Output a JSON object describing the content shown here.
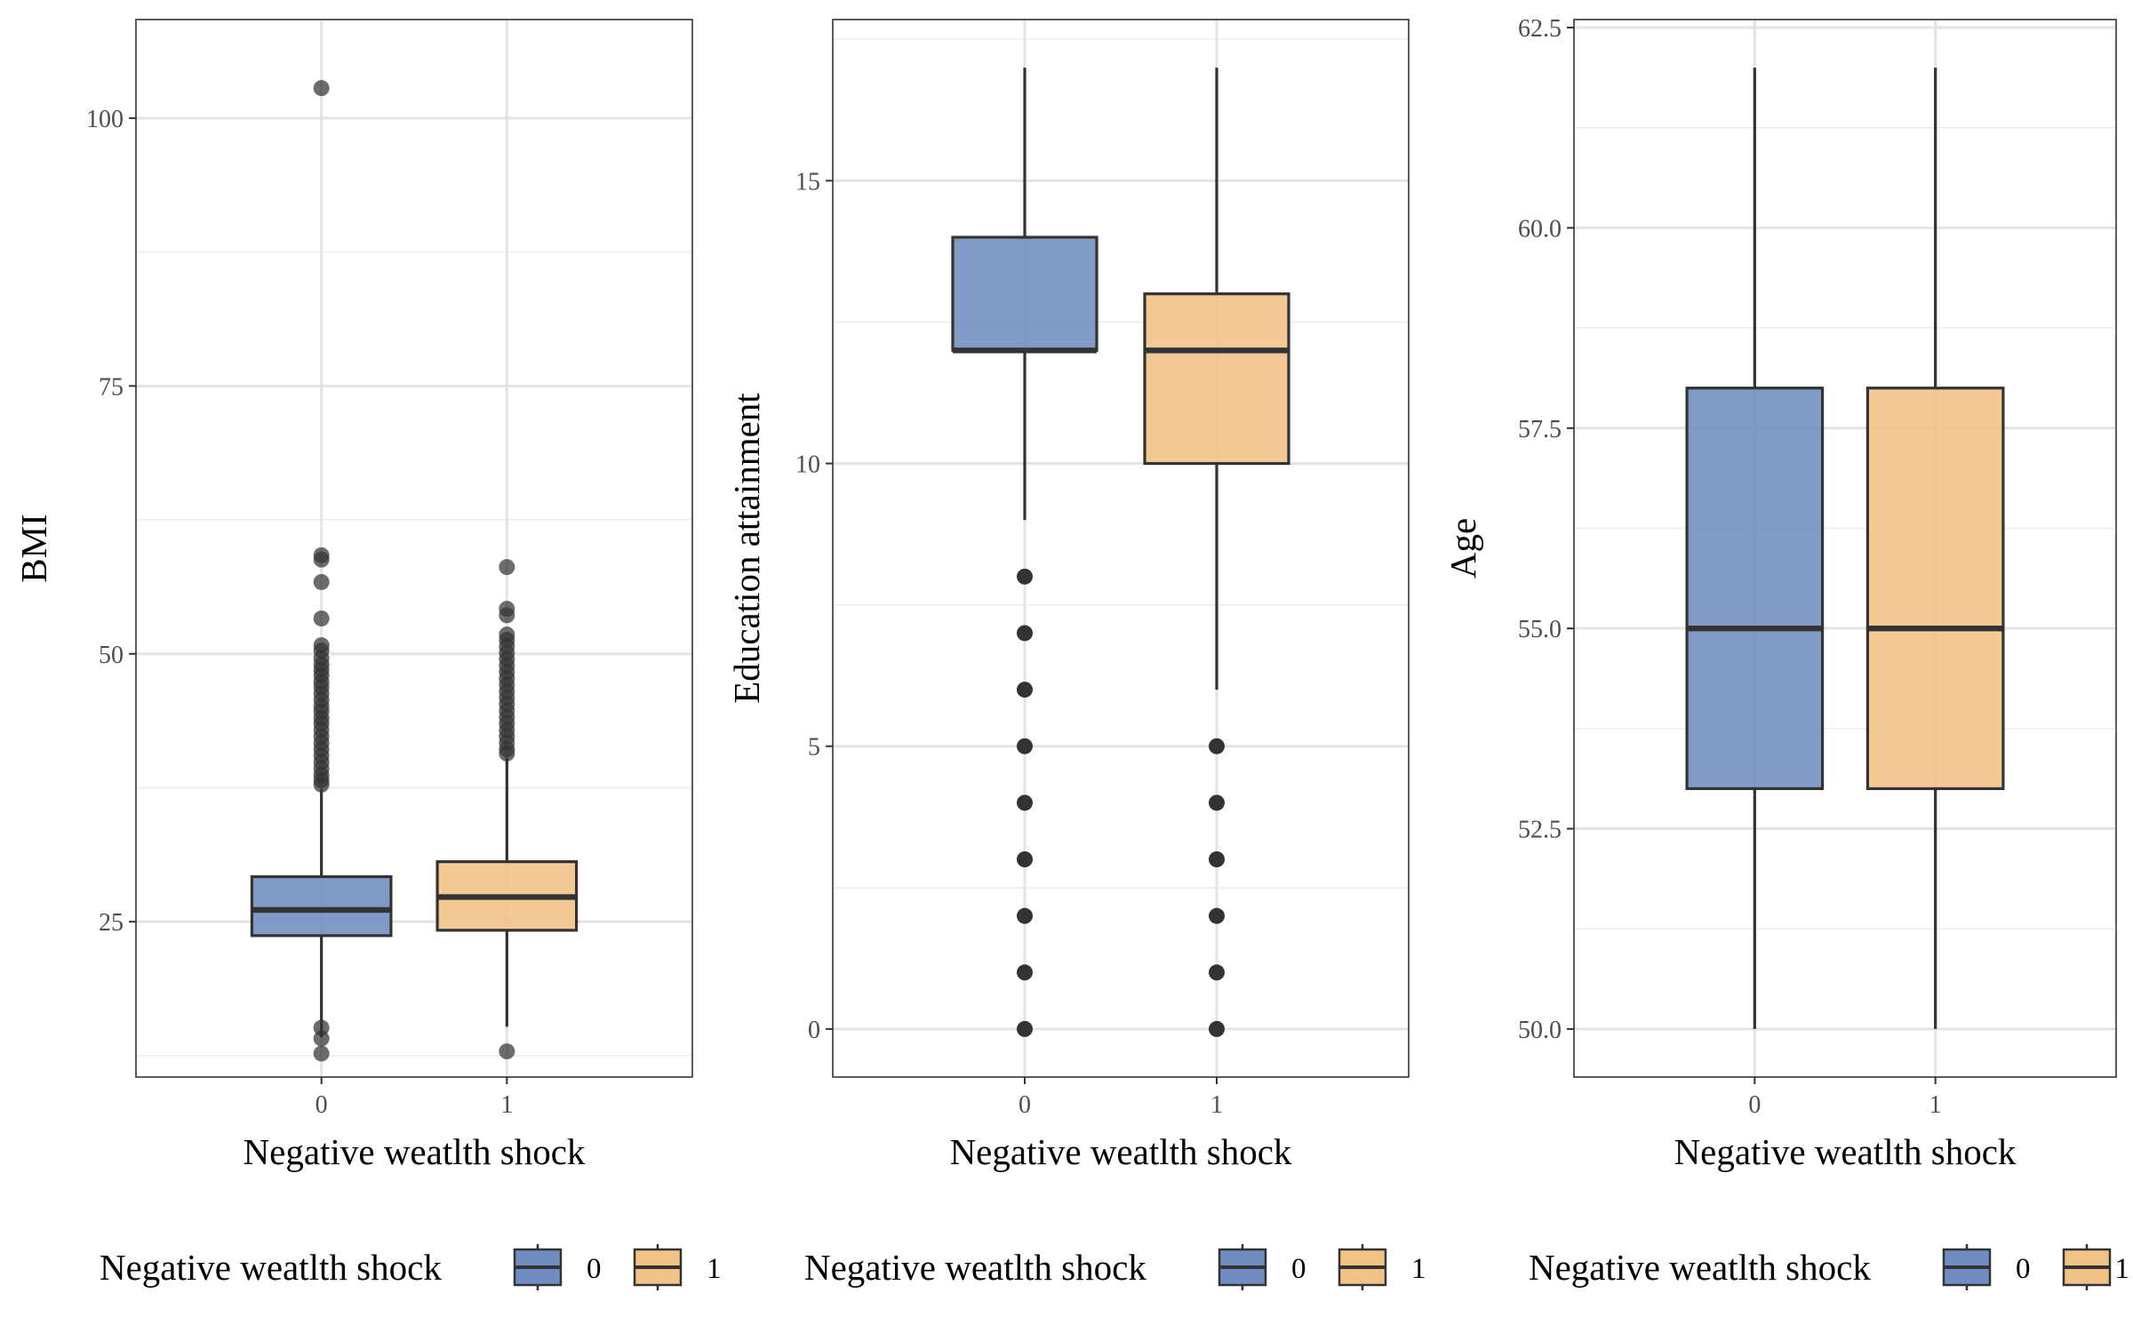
{
  "chart_data": [
    {
      "type": "boxplot",
      "xlabel": "Negative weatlth shock",
      "ylabel": "BMI",
      "ylim": [
        10.5,
        109.2
      ],
      "yticks": [
        25,
        50,
        75,
        100
      ],
      "ytick_labels": [
        "25",
        "50",
        "75",
        "100"
      ],
      "categories": [
        "0",
        "1"
      ],
      "colors": [
        "#6F8DC0",
        "#F0C286"
      ],
      "boxes": [
        {
          "category": "0",
          "whisker_low": 14.2,
          "q1": 23.7,
          "median": 26.1,
          "q3": 29.2,
          "whisker_high": 37.4,
          "outliers": [
            102.8,
            59.2,
            58.8,
            56.7,
            53.3,
            50.8,
            50.3,
            49.6,
            49.0,
            48.5,
            48.0,
            47.4,
            46.9,
            46.3,
            45.7,
            45.1,
            44.6,
            44.0,
            43.5,
            42.9,
            42.3,
            41.7,
            41.1,
            40.5,
            39.9,
            39.3,
            38.7,
            38.2,
            37.8,
            15.1,
            14.1,
            12.7
          ]
        },
        {
          "category": "1",
          "whisker_low": 15.2,
          "q1": 24.2,
          "median": 27.3,
          "q3": 30.6,
          "whisker_high": 40.3,
          "outliers": [
            58.1,
            54.2,
            53.6,
            51.8,
            51.3,
            50.7,
            50.1,
            49.5,
            48.9,
            48.3,
            47.7,
            47.1,
            46.5,
            45.9,
            45.3,
            44.7,
            44.1,
            43.5,
            42.9,
            42.3,
            41.7,
            41.1,
            40.7,
            12.9
          ]
        }
      ]
    },
    {
      "type": "boxplot",
      "xlabel": "Negative weatlth shock",
      "ylabel": "Education attainment",
      "ylim": [
        -0.85,
        17.85
      ],
      "yticks": [
        0,
        5,
        10,
        15
      ],
      "ytick_labels": [
        "0",
        "5",
        "10",
        "15"
      ],
      "categories": [
        "0",
        "1"
      ],
      "colors": [
        "#6F8DC0",
        "#F0C286"
      ],
      "boxes": [
        {
          "category": "0",
          "whisker_low": 9,
          "q1": 12,
          "median": 12,
          "q3": 14,
          "whisker_high": 17,
          "outliers": [
            8,
            7,
            6,
            5,
            4,
            3,
            2,
            1,
            0
          ]
        },
        {
          "category": "1",
          "whisker_low": 6,
          "q1": 10,
          "median": 12,
          "q3": 13,
          "whisker_high": 17,
          "outliers": [
            5,
            4,
            3,
            2,
            1,
            0
          ]
        }
      ]
    },
    {
      "type": "boxplot",
      "xlabel": "Negative weatlth shock",
      "ylabel": "Age",
      "ylim": [
        49.4,
        62.6
      ],
      "yticks": [
        50.0,
        52.5,
        55.0,
        57.5,
        60.0,
        62.5
      ],
      "ytick_labels": [
        "50.0",
        "52.5",
        "55.0",
        "57.5",
        "60.0",
        "62.5"
      ],
      "categories": [
        "0",
        "1"
      ],
      "colors": [
        "#6F8DC0",
        "#F0C286"
      ],
      "boxes": [
        {
          "category": "0",
          "whisker_low": 50,
          "q1": 53,
          "median": 55,
          "q3": 58,
          "whisker_high": 62,
          "outliers": []
        },
        {
          "category": "1",
          "whisker_low": 50,
          "q1": 53,
          "median": 55,
          "q3": 58,
          "whisker_high": 62,
          "outliers": []
        }
      ]
    }
  ],
  "legends": [
    {
      "title": "Negative weatlth shock",
      "keys": [
        "0",
        "1"
      ]
    },
    {
      "title": "Negative weatlth shock",
      "keys": [
        "0",
        "1"
      ]
    },
    {
      "title": "Negative weatlth shock",
      "keys": [
        "0",
        "1"
      ]
    }
  ]
}
